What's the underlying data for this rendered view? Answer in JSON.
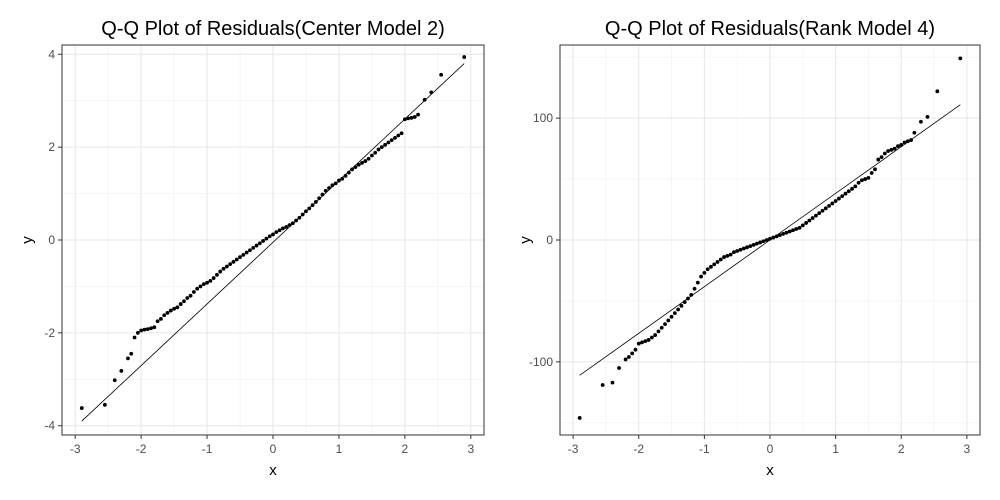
{
  "chart_data": [
    {
      "type": "scatter",
      "title": "Q-Q Plot of Residuals(Center Model 2)",
      "xlabel": "x",
      "ylabel": "y",
      "xlim": [
        -3.2,
        3.2
      ],
      "ylim": [
        -4.2,
        4.2
      ],
      "x_ticks": [
        -3,
        -2,
        -1,
        0,
        1,
        2,
        3
      ],
      "x_tick_labels": [
        "-3",
        "-2",
        "-1",
        "0",
        "1",
        "2",
        "3"
      ],
      "y_ticks": [
        -4,
        -2,
        0,
        2,
        4
      ],
      "y_tick_labels": [
        "-4",
        "-2",
        "0",
        "2",
        "4"
      ],
      "grid": true,
      "legend": "none",
      "point_color": "#000000",
      "reference_line": {
        "x": [
          -2.9,
          2.9
        ],
        "y": [
          -3.9,
          3.8
        ]
      },
      "series": [
        {
          "x": [
            -2.9,
            -2.55,
            -2.4,
            -2.3,
            -2.2,
            -2.15,
            -2.1,
            -2.05,
            -2.0,
            -1.95,
            -1.9,
            -1.85,
            -1.8,
            -1.75,
            -1.7,
            -1.65,
            -1.6,
            -1.55,
            -1.5,
            -1.45,
            -1.4,
            -1.35,
            -1.3,
            -1.25,
            -1.2,
            -1.15,
            -1.1,
            -1.05,
            -1.0,
            -0.95,
            -0.9,
            -0.85,
            -0.8,
            -0.75,
            -0.7,
            -0.65,
            -0.6,
            -0.55,
            -0.5,
            -0.45,
            -0.4,
            -0.35,
            -0.3,
            -0.25,
            -0.2,
            -0.15,
            -0.1,
            -0.05,
            0.0,
            0.05,
            0.1,
            0.15,
            0.2,
            0.25,
            0.3,
            0.35,
            0.4,
            0.45,
            0.5,
            0.55,
            0.6,
            0.65,
            0.7,
            0.75,
            0.8,
            0.85,
            0.9,
            0.95,
            1.0,
            1.05,
            1.1,
            1.15,
            1.2,
            1.25,
            1.3,
            1.35,
            1.4,
            1.45,
            1.5,
            1.55,
            1.6,
            1.65,
            1.7,
            1.75,
            1.8,
            1.85,
            1.9,
            1.95,
            2.0,
            2.05,
            2.1,
            2.15,
            2.2,
            2.3,
            2.4,
            2.55,
            2.9
          ],
          "y": [
            -3.62,
            -3.55,
            -3.02,
            -2.82,
            -2.55,
            -2.45,
            -2.1,
            -2.0,
            -1.95,
            -1.93,
            -1.92,
            -1.9,
            -1.88,
            -1.75,
            -1.7,
            -1.62,
            -1.57,
            -1.52,
            -1.48,
            -1.45,
            -1.38,
            -1.32,
            -1.25,
            -1.2,
            -1.12,
            -1.05,
            -1.0,
            -0.95,
            -0.92,
            -0.88,
            -0.82,
            -0.75,
            -0.68,
            -0.62,
            -0.57,
            -0.52,
            -0.47,
            -0.42,
            -0.37,
            -0.32,
            -0.27,
            -0.22,
            -0.17,
            -0.12,
            -0.07,
            -0.02,
            0.03,
            0.08,
            0.12,
            0.17,
            0.21,
            0.25,
            0.28,
            0.32,
            0.36,
            0.42,
            0.48,
            0.55,
            0.62,
            0.68,
            0.75,
            0.82,
            0.9,
            0.98,
            1.06,
            1.12,
            1.18,
            1.22,
            1.28,
            1.32,
            1.38,
            1.45,
            1.52,
            1.57,
            1.62,
            1.66,
            1.7,
            1.75,
            1.82,
            1.88,
            1.95,
            2.0,
            2.05,
            2.1,
            2.15,
            2.2,
            2.25,
            2.3,
            2.6,
            2.62,
            2.63,
            2.65,
            2.7,
            3.02,
            3.18,
            3.56,
            3.94
          ]
        }
      ]
    },
    {
      "type": "scatter",
      "title": "Q-Q Plot of Residuals(Rank Model 4)",
      "xlabel": "x",
      "ylabel": "y",
      "xlim": [
        -3.2,
        3.2
      ],
      "ylim": [
        -160,
        160
      ],
      "x_ticks": [
        -3,
        -2,
        -1,
        0,
        1,
        2,
        3
      ],
      "x_tick_labels": [
        "-3",
        "-2",
        "-1",
        "0",
        "1",
        "2",
        "3"
      ],
      "y_ticks": [
        -100,
        0,
        100
      ],
      "y_tick_labels": [
        "-100",
        "0",
        "100"
      ],
      "grid": true,
      "legend": "none",
      "point_color": "#000000",
      "reference_line": {
        "x": [
          -2.9,
          2.9
        ],
        "y": [
          -111,
          111
        ]
      },
      "series": [
        {
          "x": [
            -2.9,
            -2.55,
            -2.4,
            -2.3,
            -2.2,
            -2.15,
            -2.1,
            -2.05,
            -2.0,
            -1.95,
            -1.9,
            -1.85,
            -1.8,
            -1.75,
            -1.7,
            -1.65,
            -1.6,
            -1.55,
            -1.5,
            -1.45,
            -1.4,
            -1.35,
            -1.3,
            -1.25,
            -1.2,
            -1.15,
            -1.1,
            -1.05,
            -1.0,
            -0.95,
            -0.9,
            -0.85,
            -0.8,
            -0.75,
            -0.7,
            -0.65,
            -0.6,
            -0.55,
            -0.5,
            -0.45,
            -0.4,
            -0.35,
            -0.3,
            -0.25,
            -0.2,
            -0.15,
            -0.1,
            -0.05,
            0.0,
            0.05,
            0.1,
            0.15,
            0.2,
            0.25,
            0.3,
            0.35,
            0.4,
            0.45,
            0.5,
            0.55,
            0.6,
            0.65,
            0.7,
            0.75,
            0.8,
            0.85,
            0.9,
            0.95,
            1.0,
            1.05,
            1.1,
            1.15,
            1.2,
            1.25,
            1.3,
            1.35,
            1.4,
            1.45,
            1.5,
            1.55,
            1.6,
            1.65,
            1.7,
            1.75,
            1.8,
            1.85,
            1.9,
            1.95,
            2.0,
            2.05,
            2.1,
            2.15,
            2.2,
            2.3,
            2.4,
            2.55,
            2.9
          ],
          "y": [
            -146,
            -119,
            -117,
            -105,
            -98,
            -96,
            -93,
            -90,
            -85,
            -84,
            -83,
            -82,
            -80,
            -78,
            -75,
            -72,
            -69,
            -66,
            -63,
            -60,
            -57,
            -54,
            -51,
            -48,
            -45,
            -40,
            -35,
            -30,
            -27,
            -24,
            -22,
            -20,
            -18,
            -16,
            -14,
            -13,
            -12,
            -10,
            -9,
            -8,
            -7,
            -6,
            -5,
            -4,
            -3,
            -2,
            -1,
            0,
            1,
            2,
            3,
            4,
            5,
            6,
            7,
            8,
            9,
            10,
            12,
            14,
            16,
            18,
            20,
            22,
            24,
            26,
            28,
            30,
            32,
            34,
            36,
            38,
            40,
            42,
            44,
            47,
            49,
            50,
            51,
            55,
            58,
            66,
            68,
            71,
            73,
            74,
            75,
            77,
            78,
            80,
            81,
            82,
            88,
            97,
            101,
            122,
            149
          ]
        }
      ]
    }
  ]
}
